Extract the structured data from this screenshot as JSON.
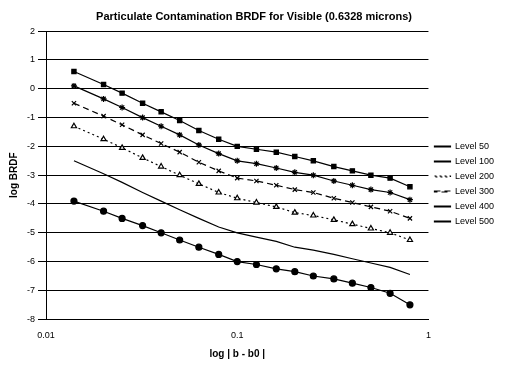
{
  "chart_data": {
    "type": "line",
    "title": "Particulate Contamination BRDF for Visible (0.6328 microns)",
    "x_label": "log | b - b0 |",
    "y_label": "log BRDF",
    "log": "x",
    "grid": "y",
    "legend": "right",
    "x": [
      0.014,
      0.02,
      0.025,
      0.032,
      0.04,
      0.05,
      0.063,
      0.08,
      0.1,
      0.126,
      0.16,
      0.2,
      0.25,
      0.32,
      0.4,
      0.5,
      0.63,
      0.8
    ],
    "xlim": [
      0.01,
      1
    ],
    "xticks": [
      0.01,
      0.1,
      1
    ],
    "ylim": [
      -8,
      2
    ],
    "yticks": [
      -8,
      -7,
      -6,
      -5,
      -4,
      -3,
      -2,
      -1,
      0,
      1,
      2
    ],
    "series": [
      {
        "name": "Level 50",
        "color": "#000000",
        "marker": "circle",
        "line_style": "solid",
        "values": [
          -3.9,
          -4.25,
          -4.5,
          -4.75,
          -5.0,
          -5.25,
          -5.5,
          -5.75,
          -6.0,
          -6.1,
          -6.25,
          -6.35,
          -6.5,
          -6.6,
          -6.75,
          -6.9,
          -7.1,
          -7.5
        ]
      },
      {
        "name": "Level 100",
        "color": "#000000",
        "marker": "none",
        "line_style": "solid",
        "values": [
          -2.5,
          -2.95,
          -3.25,
          -3.6,
          -3.9,
          -4.2,
          -4.5,
          -4.8,
          -5.0,
          -5.15,
          -5.3,
          -5.5,
          -5.6,
          -5.75,
          -5.9,
          -6.05,
          -6.2,
          -6.45
        ]
      },
      {
        "name": "Level 200",
        "color": "#000000",
        "marker": "triangle",
        "line_style": "dotted",
        "values": [
          -1.3,
          -1.75,
          -2.05,
          -2.4,
          -2.7,
          -3.0,
          -3.3,
          -3.6,
          -3.8,
          -3.95,
          -4.1,
          -4.3,
          -4.4,
          -4.55,
          -4.7,
          -4.85,
          -5.0,
          -5.25
        ]
      },
      {
        "name": "Level 300",
        "color": "#000000",
        "marker": "x",
        "line_style": "dashed",
        "values": [
          -0.5,
          -0.95,
          -1.25,
          -1.6,
          -1.9,
          -2.2,
          -2.55,
          -2.85,
          -3.1,
          -3.2,
          -3.35,
          -3.5,
          -3.6,
          -3.8,
          -3.95,
          -4.1,
          -4.25,
          -4.5
        ]
      },
      {
        "name": "Level 400",
        "color": "#000000",
        "marker": "star",
        "line_style": "solid",
        "values": [
          0.1,
          -0.35,
          -0.65,
          -1.0,
          -1.3,
          -1.6,
          -1.95,
          -2.25,
          -2.5,
          -2.6,
          -2.75,
          -2.9,
          -3.0,
          -3.2,
          -3.35,
          -3.5,
          -3.6,
          -3.85
        ]
      },
      {
        "name": "Level 500",
        "color": "#000000",
        "marker": "square",
        "line_style": "solid",
        "values": [
          0.6,
          0.15,
          -0.15,
          -0.5,
          -0.8,
          -1.1,
          -1.45,
          -1.75,
          -2.0,
          -2.1,
          -2.2,
          -2.35,
          -2.5,
          -2.7,
          -2.85,
          -3.0,
          -3.1,
          -3.4
        ]
      }
    ]
  }
}
